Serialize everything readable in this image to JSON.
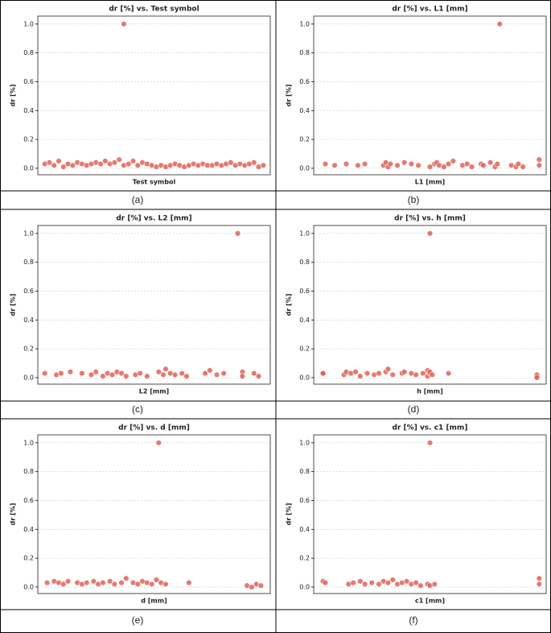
{
  "chart_data": [
    {
      "type": "scatter",
      "title": "dr [%] vs. Test symbol",
      "x_label": "Test symbol",
      "y_label": "dr [%]",
      "caption": "(a)",
      "color": "#e0574c",
      "grid": true,
      "xlim": [
        0,
        1
      ],
      "ylim": [
        -0.045,
        1.055
      ],
      "yticks": [
        {
          "value": 0,
          "label": "0.0"
        },
        {
          "value": 0.2,
          "label": "0.2"
        },
        {
          "value": 0.4,
          "label": "0.4"
        },
        {
          "value": 0.6,
          "label": "0.6"
        },
        {
          "value": 0.8,
          "label": "0.8"
        },
        {
          "value": 1,
          "label": "1.0"
        }
      ],
      "x": [
        0.03,
        0.05,
        0.07,
        0.09,
        0.11,
        0.13,
        0.15,
        0.17,
        0.19,
        0.21,
        0.23,
        0.25,
        0.27,
        0.29,
        0.31,
        0.33,
        0.35,
        0.37,
        0.39,
        0.41,
        0.43,
        0.45,
        0.47,
        0.49,
        0.51,
        0.53,
        0.55,
        0.57,
        0.59,
        0.61,
        0.63,
        0.65,
        0.67,
        0.69,
        0.71,
        0.73,
        0.75,
        0.77,
        0.79,
        0.81,
        0.83,
        0.85,
        0.87,
        0.89,
        0.91,
        0.93,
        0.95,
        0.97,
        0.37
      ],
      "values": [
        0.03,
        0.04,
        0.02,
        0.05,
        0.01,
        0.03,
        0.02,
        0.04,
        0.03,
        0.02,
        0.03,
        0.04,
        0.03,
        0.05,
        0.03,
        0.04,
        0.06,
        0.02,
        0.03,
        0.05,
        0.02,
        0.04,
        0.03,
        0.02,
        0.01,
        0.02,
        0.01,
        0.02,
        0.03,
        0.02,
        0.01,
        0.02,
        0.03,
        0.02,
        0.03,
        0.02,
        0.02,
        0.03,
        0.02,
        0.03,
        0.04,
        0.02,
        0.03,
        0.02,
        0.03,
        0.04,
        0.01,
        0.02,
        1.0
      ]
    },
    {
      "type": "scatter",
      "title": "dr [%] vs. L1 [mm]",
      "x_label": "L1 [mm]",
      "y_label": "dr [%]",
      "caption": "(b)",
      "color": "#e0574c",
      "grid": true,
      "xlim": [
        0,
        1
      ],
      "ylim": [
        -0.045,
        1.055
      ],
      "yticks": [
        {
          "value": 0,
          "label": "0.0"
        },
        {
          "value": 0.2,
          "label": "0.2"
        },
        {
          "value": 0.4,
          "label": "0.4"
        },
        {
          "value": 0.6,
          "label": "0.6"
        },
        {
          "value": 0.8,
          "label": "0.8"
        },
        {
          "value": 1,
          "label": "1.0"
        }
      ],
      "x": [
        0.05,
        0.09,
        0.14,
        0.19,
        0.22,
        0.3,
        0.31,
        0.32,
        0.33,
        0.36,
        0.39,
        0.42,
        0.45,
        0.5,
        0.52,
        0.53,
        0.54,
        0.56,
        0.58,
        0.6,
        0.64,
        0.66,
        0.68,
        0.72,
        0.73,
        0.76,
        0.78,
        0.79,
        0.85,
        0.87,
        0.88,
        0.9,
        0.97,
        0.97,
        0.8
      ],
      "values": [
        0.03,
        0.02,
        0.03,
        0.02,
        0.03,
        0.02,
        0.04,
        0.01,
        0.03,
        0.02,
        0.04,
        0.03,
        0.02,
        0.01,
        0.03,
        0.04,
        0.02,
        0.01,
        0.03,
        0.05,
        0.02,
        0.03,
        0.01,
        0.03,
        0.02,
        0.04,
        0.01,
        0.03,
        0.02,
        0.01,
        0.03,
        0.01,
        0.06,
        0.02,
        1.0
      ]
    },
    {
      "type": "scatter",
      "title": "dr [%] vs. L2 [mm]",
      "x_label": "L2 [mm]",
      "y_label": "dr [%]",
      "caption": "(c)",
      "color": "#e0574c",
      "grid": true,
      "xlim": [
        0,
        1
      ],
      "ylim": [
        -0.045,
        1.055
      ],
      "yticks": [
        {
          "value": 0,
          "label": "0.0"
        },
        {
          "value": 0.2,
          "label": "0.2"
        },
        {
          "value": 0.4,
          "label": "0.4"
        },
        {
          "value": 0.6,
          "label": "0.6"
        },
        {
          "value": 0.8,
          "label": "0.8"
        },
        {
          "value": 1,
          "label": "1.0"
        }
      ],
      "x": [
        0.03,
        0.08,
        0.1,
        0.14,
        0.19,
        0.23,
        0.25,
        0.28,
        0.3,
        0.32,
        0.34,
        0.36,
        0.38,
        0.42,
        0.44,
        0.47,
        0.52,
        0.54,
        0.55,
        0.57,
        0.59,
        0.62,
        0.64,
        0.72,
        0.74,
        0.77,
        0.8,
        0.88,
        0.88,
        0.93,
        0.95,
        0.86
      ],
      "values": [
        0.03,
        0.02,
        0.03,
        0.04,
        0.03,
        0.02,
        0.04,
        0.01,
        0.03,
        0.02,
        0.04,
        0.03,
        0.01,
        0.02,
        0.03,
        0.01,
        0.04,
        0.02,
        0.06,
        0.03,
        0.02,
        0.03,
        0.01,
        0.03,
        0.05,
        0.02,
        0.03,
        0.04,
        0.01,
        0.03,
        0.01,
        1.0
      ]
    },
    {
      "type": "scatter",
      "title": "dr [%] vs. h [mm]",
      "x_label": "h [mm]",
      "y_label": "dr [%]",
      "caption": "(d)",
      "color": "#e0574c",
      "grid": true,
      "xlim": [
        0,
        1
      ],
      "ylim": [
        -0.045,
        1.055
      ],
      "yticks": [
        {
          "value": 0,
          "label": "0.0"
        },
        {
          "value": 0.2,
          "label": "0.2"
        },
        {
          "value": 0.4,
          "label": "0.4"
        },
        {
          "value": 0.6,
          "label": "0.6"
        },
        {
          "value": 0.8,
          "label": "0.8"
        },
        {
          "value": 1,
          "label": "1.0"
        }
      ],
      "x": [
        0.04,
        0.04,
        0.13,
        0.14,
        0.16,
        0.18,
        0.2,
        0.23,
        0.26,
        0.28,
        0.31,
        0.32,
        0.34,
        0.38,
        0.39,
        0.42,
        0.44,
        0.47,
        0.49,
        0.49,
        0.5,
        0.5,
        0.51,
        0.58,
        0.96,
        0.96,
        0.96,
        0.5
      ],
      "values": [
        0.03,
        0.03,
        0.02,
        0.04,
        0.03,
        0.04,
        0.01,
        0.03,
        0.02,
        0.03,
        0.04,
        0.06,
        0.02,
        0.03,
        0.04,
        0.03,
        0.02,
        0.03,
        0.05,
        0.01,
        0.03,
        0.04,
        0.02,
        0.03,
        0.01,
        0.02,
        0.0,
        1.0
      ]
    },
    {
      "type": "scatter",
      "title": "dr [%] vs. d [mm]",
      "x_label": "d [mm]",
      "y_label": "dr [%]",
      "caption": "(e)",
      "color": "#e0574c",
      "grid": true,
      "xlim": [
        0,
        1
      ],
      "ylim": [
        -0.045,
        1.055
      ],
      "yticks": [
        {
          "value": 0,
          "label": "0.0"
        },
        {
          "value": 0.2,
          "label": "0.2"
        },
        {
          "value": 0.4,
          "label": "0.4"
        },
        {
          "value": 0.6,
          "label": "0.6"
        },
        {
          "value": 0.8,
          "label": "0.8"
        },
        {
          "value": 1,
          "label": "1.0"
        }
      ],
      "x": [
        0.04,
        0.07,
        0.09,
        0.11,
        0.13,
        0.17,
        0.19,
        0.21,
        0.24,
        0.26,
        0.28,
        0.31,
        0.33,
        0.36,
        0.38,
        0.41,
        0.43,
        0.45,
        0.47,
        0.49,
        0.51,
        0.53,
        0.55,
        0.65,
        0.9,
        0.92,
        0.94,
        0.96,
        0.52
      ],
      "values": [
        0.03,
        0.04,
        0.03,
        0.02,
        0.04,
        0.03,
        0.02,
        0.03,
        0.04,
        0.02,
        0.03,
        0.04,
        0.02,
        0.03,
        0.06,
        0.03,
        0.02,
        0.04,
        0.03,
        0.02,
        0.05,
        0.03,
        0.02,
        0.03,
        0.01,
        0.0,
        0.02,
        0.01,
        1.0
      ]
    },
    {
      "type": "scatter",
      "title": "dr [%] vs. c1 [mm]",
      "x_label": "c1 [mm]",
      "y_label": "dr [%]",
      "caption": "(f)",
      "color": "#e0574c",
      "grid": true,
      "xlim": [
        0,
        1
      ],
      "ylim": [
        -0.045,
        1.055
      ],
      "yticks": [
        {
          "value": 0,
          "label": "0.0"
        },
        {
          "value": 0.2,
          "label": "0.2"
        },
        {
          "value": 0.4,
          "label": "0.4"
        },
        {
          "value": 0.6,
          "label": "0.6"
        },
        {
          "value": 0.8,
          "label": "0.8"
        },
        {
          "value": 1,
          "label": "1.0"
        }
      ],
      "x": [
        0.04,
        0.05,
        0.15,
        0.17,
        0.2,
        0.22,
        0.25,
        0.28,
        0.3,
        0.32,
        0.34,
        0.36,
        0.38,
        0.4,
        0.42,
        0.44,
        0.46,
        0.49,
        0.5,
        0.52,
        0.97,
        0.97,
        0.5
      ],
      "values": [
        0.04,
        0.03,
        0.02,
        0.03,
        0.04,
        0.02,
        0.03,
        0.02,
        0.04,
        0.03,
        0.05,
        0.02,
        0.03,
        0.04,
        0.02,
        0.03,
        0.01,
        0.02,
        0.01,
        0.02,
        0.06,
        0.02,
        1.0
      ]
    }
  ]
}
